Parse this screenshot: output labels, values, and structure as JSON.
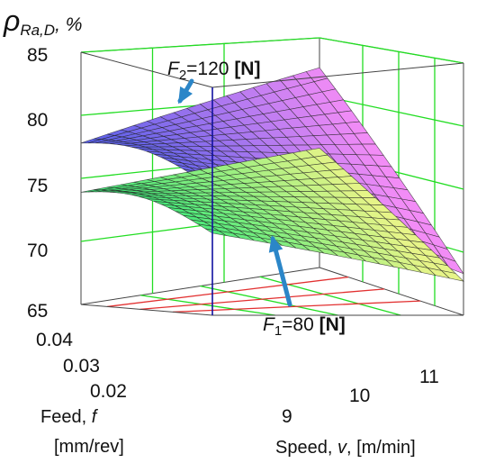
{
  "chart_data": {
    "type": "surface3d",
    "zlabel": {
      "symbol": "ρ",
      "subscript": "Ra,D",
      "unit": ", %"
    },
    "xlabel": {
      "line1_text": "Feed, ",
      "line1_var": "f",
      "line2": "[mm/rev]"
    },
    "ylabel": {
      "text": "Speed, ",
      "var": "v",
      "unit": ", [m/min]"
    },
    "z_ticks": [
      "85",
      "80",
      "75",
      "70",
      "65"
    ],
    "x_ticks": [
      "0.04",
      "0.03",
      "0.02"
    ],
    "y_ticks": [
      "9",
      "10",
      "11"
    ],
    "zlim": [
      65,
      85
    ],
    "feed_range": [
      0.015,
      0.045
    ],
    "speed_range": [
      8.5,
      11.5
    ],
    "series": [
      {
        "name": "F2=120 [N]",
        "label": {
          "var": "F",
          "sub": "2",
          "rest": "=120 ",
          "unit": "[N]"
        },
        "corner_values": {
          "max_feed_min_speed": 77.8,
          "min_feed_min_speed": 76.2,
          "max_feed_max_speed": 82.4,
          "min_feed_max_speed": 68.3
        },
        "colors": [
          "#5a60e8",
          "#f28cf6"
        ]
      },
      {
        "name": "F1=80 [N]",
        "label": {
          "var": "F",
          "sub": "1",
          "rest": "=80 ",
          "unit": "[N]"
        },
        "corner_values": {
          "max_feed_min_speed": 73.9,
          "min_feed_min_speed": 72.2,
          "max_feed_max_speed": 75.4,
          "min_feed_max_speed": 67.7
        },
        "colors": [
          "#3ce878",
          "#e6f488"
        ]
      }
    ],
    "grid": true,
    "colors": {
      "box_grid": "#22dd22",
      "floor_grid": "#e23030",
      "axis": "#1010a0",
      "arrow": "#2b86c8"
    }
  }
}
